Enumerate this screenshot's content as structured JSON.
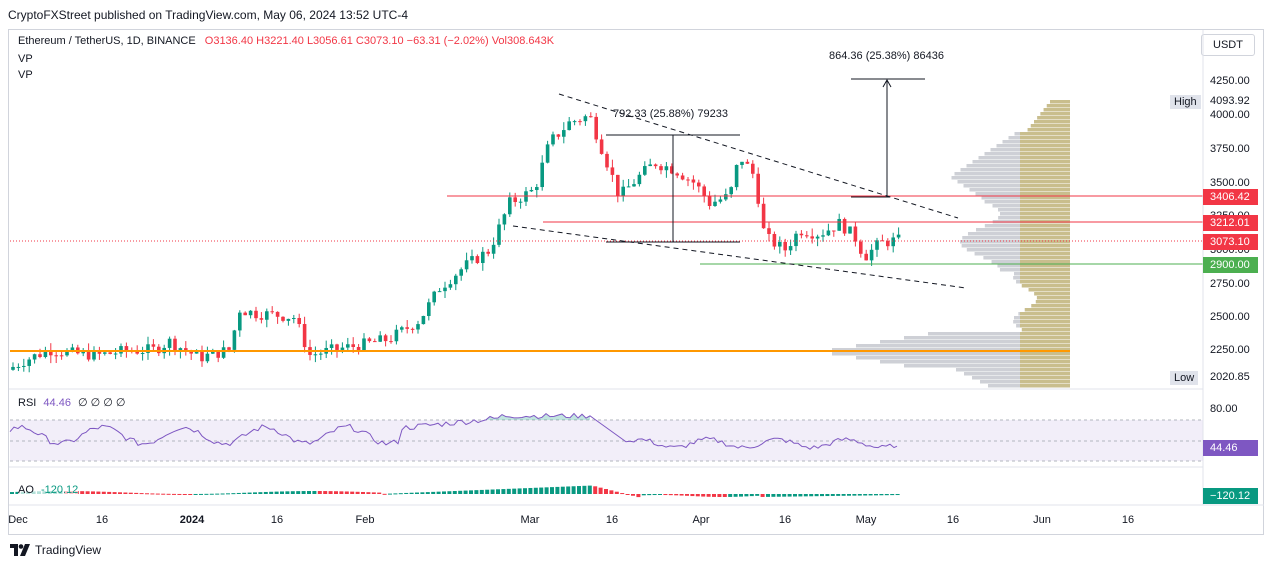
{
  "publisher_line": "CryptoFXStreet published on TradingView.com, May 06, 2024 13:52 UTC-4",
  "legend": {
    "symbol": "Ethereum / TetherUS, 1D, BINANCE",
    "open": "O3136.40",
    "high": "H3221.40",
    "low": "L3056.61",
    "close": "C3073.10",
    "change": "−63.31 (−2.02%)",
    "volume": "Vol308.643K"
  },
  "indicators": [
    "VP",
    "VP"
  ],
  "currency_button": "USDT",
  "y_axis": {
    "ticks": [
      "4250.00",
      "4000.00",
      "3750.00",
      "3500.00",
      "3250.00",
      "3000.00",
      "2750.00",
      "2500.00",
      "2250.00"
    ],
    "high_tag": "High",
    "high_value": "4093.92",
    "low_tag": "Low",
    "low_value": "2020.85"
  },
  "price_labels": {
    "resistance_upper": "3406.42",
    "resistance_lower": "3212.01",
    "last_price": "3073.10",
    "support": "2900.00"
  },
  "annotations": {
    "measure_top": "864.36 (25.38%) 86436",
    "measure_left": "792.33 (25.88%) 79233"
  },
  "rsi": {
    "label": "RSI",
    "value": "44.46",
    "extra": "∅ ∅ ∅ ∅",
    "axis_tick": "80.00",
    "value_tag": "44.46"
  },
  "ao": {
    "label": "AO",
    "value": "-120.12",
    "value_tag": "−120.12"
  },
  "x_axis": [
    "Dec",
    "16",
    "2024",
    "16",
    "Feb",
    "Mar",
    "16",
    "Apr",
    "16",
    "May",
    "16",
    "Jun",
    "16"
  ],
  "brand": "TradingView",
  "colors": {
    "up": "#089981",
    "down": "#f23645",
    "rsi_line": "#7e57c2",
    "support_line": "#4caf50",
    "orange_line": "#ff9800",
    "label_red": "#f23645",
    "label_green": "#4caf50",
    "label_purple": "#7e57c2"
  },
  "chart_data": {
    "type": "candlestick",
    "symbol": "Ethereum / TetherUS",
    "interval": "1D",
    "ylim": [
      2020,
      4300
    ],
    "horizontal_levels": [
      3406.42,
      3212.01,
      3073.1,
      2900.0,
      2235
    ],
    "close_path_monthly": [
      {
        "x": "Dec",
        "y": 2130
      },
      {
        "x": "2024",
        "y": 2300
      },
      {
        "x": "Feb",
        "y": 2280
      },
      {
        "x": "Mar",
        "y": 3350
      },
      {
        "x": "16",
        "y": 3700
      },
      {
        "x": "Apr",
        "y": 3400
      },
      {
        "x": "16",
        "y": 3100
      },
      {
        "x": "May",
        "y": 3073.1
      }
    ],
    "rsi_last": 44.46,
    "ao_last": -120.12
  }
}
